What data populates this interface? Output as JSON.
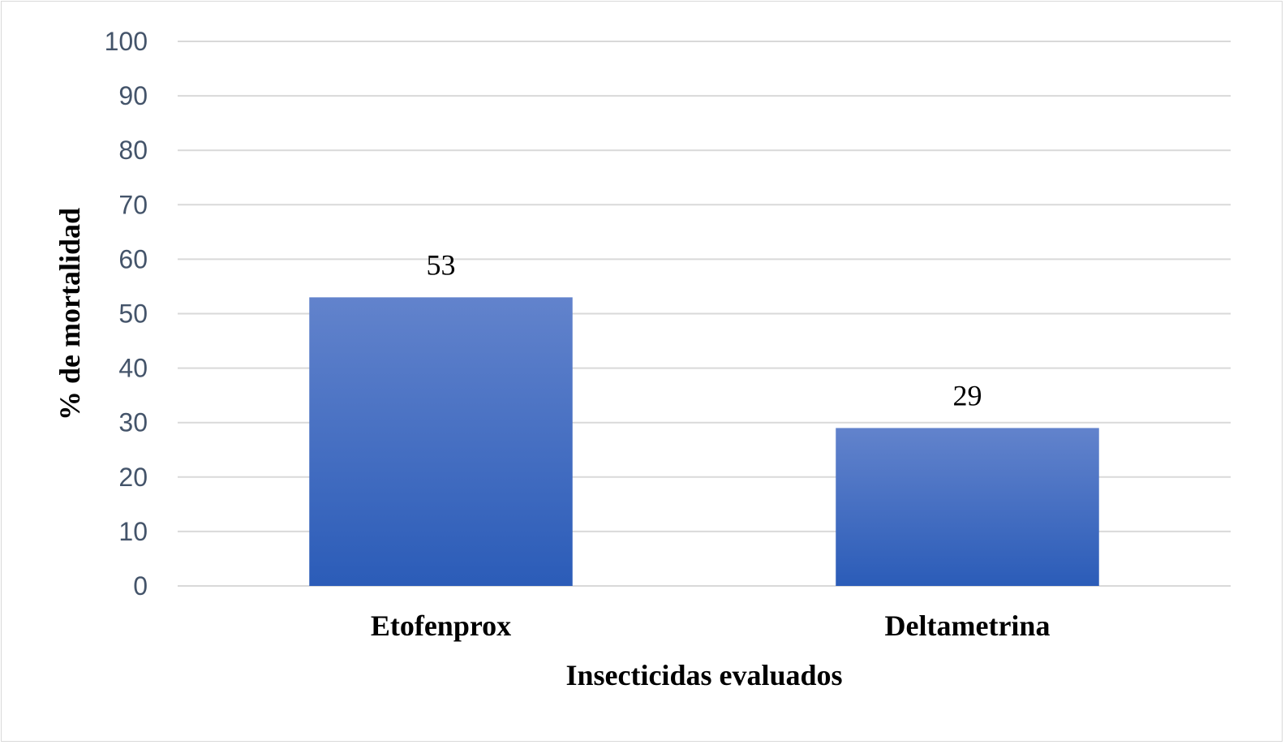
{
  "chart_data": {
    "type": "bar",
    "title": "",
    "xlabel": "Insecticidas evaluados",
    "ylabel": "%  de mortalidad",
    "categories": [
      "Etofenprox",
      "Deltametrina"
    ],
    "values": [
      53,
      29
    ],
    "data_labels": [
      "53",
      "29"
    ],
    "ylim": [
      0,
      100
    ],
    "yticks": [
      0,
      10,
      20,
      30,
      40,
      50,
      60,
      70,
      80,
      90,
      100
    ],
    "grid": true,
    "legend": "none",
    "colors": {
      "bar_top": "#6283cc",
      "bar_bottom": "#2b5cb8",
      "grid": "#d9d9d9",
      "tick_text": "#44546a"
    }
  }
}
